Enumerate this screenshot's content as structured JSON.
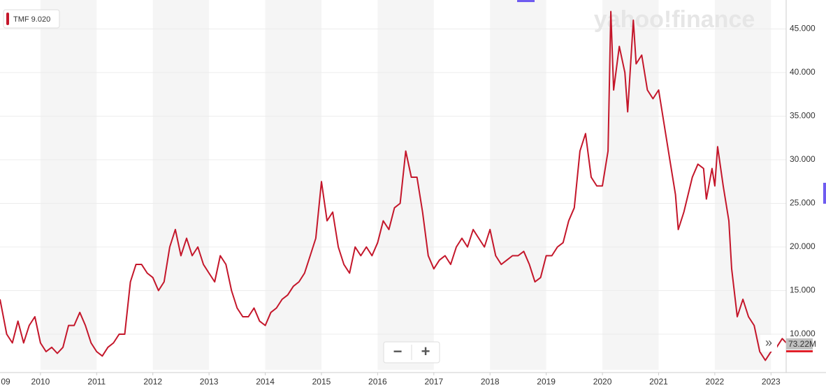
{
  "chart_data": {
    "type": "line",
    "legend_label": "TMF 9.020",
    "watermark": "yahoo!finance",
    "volume_label": "73.22M",
    "zoom_out": "−",
    "zoom_in": "+",
    "scroll": "»",
    "x": [
      2009.28,
      2009.4,
      2009.5,
      2009.6,
      2009.7,
      2009.8,
      2009.9,
      2010.0,
      2010.1,
      2010.2,
      2010.3,
      2010.4,
      2010.5,
      2010.6,
      2010.7,
      2010.8,
      2010.9,
      2011.0,
      2011.1,
      2011.2,
      2011.3,
      2011.4,
      2011.5,
      2011.6,
      2011.7,
      2011.8,
      2011.9,
      2012.0,
      2012.1,
      2012.2,
      2012.3,
      2012.4,
      2012.5,
      2012.6,
      2012.7,
      2012.8,
      2012.9,
      2013.0,
      2013.1,
      2013.2,
      2013.3,
      2013.4,
      2013.5,
      2013.6,
      2013.7,
      2013.8,
      2013.9,
      2014.0,
      2014.1,
      2014.2,
      2014.3,
      2014.4,
      2014.5,
      2014.6,
      2014.7,
      2014.8,
      2014.9,
      2015.0,
      2015.1,
      2015.2,
      2015.3,
      2015.4,
      2015.5,
      2015.6,
      2015.7,
      2015.8,
      2015.9,
      2016.0,
      2016.1,
      2016.2,
      2016.3,
      2016.4,
      2016.5,
      2016.6,
      2016.7,
      2016.8,
      2016.9,
      2017.0,
      2017.1,
      2017.2,
      2017.3,
      2017.4,
      2017.5,
      2017.6,
      2017.7,
      2017.8,
      2017.9,
      2018.0,
      2018.1,
      2018.2,
      2018.3,
      2018.4,
      2018.5,
      2018.6,
      2018.7,
      2018.8,
      2018.9,
      2019.0,
      2019.1,
      2019.2,
      2019.3,
      2019.4,
      2019.5,
      2019.6,
      2019.7,
      2019.8,
      2019.9,
      2020.0,
      2020.1,
      2020.15,
      2020.2,
      2020.3,
      2020.4,
      2020.45,
      2020.55,
      2020.6,
      2020.7,
      2020.8,
      2020.9,
      2021.0,
      2021.1,
      2021.2,
      2021.3,
      2021.35,
      2021.45,
      2021.6,
      2021.7,
      2021.8,
      2021.85,
      2021.95,
      2022.0,
      2022.05,
      2022.15,
      2022.25,
      2022.3,
      2022.4,
      2022.5,
      2022.6,
      2022.7,
      2022.8,
      2022.9,
      2023.0,
      2023.1,
      2023.2,
      2023.27
    ],
    "series": [
      {
        "name": "TMF",
        "color": "#c4162a",
        "values": [
          14,
          10,
          9,
          11.5,
          9,
          11,
          12,
          9,
          8,
          8.5,
          7.8,
          8.5,
          11,
          11,
          12.5,
          11,
          9,
          8,
          7.5,
          8.5,
          9,
          10,
          10,
          16,
          18,
          18,
          17,
          16.5,
          15,
          16,
          20,
          22,
          19,
          21,
          19,
          20,
          18,
          17,
          16,
          19,
          18,
          15,
          13,
          12,
          12,
          13,
          11.5,
          11,
          12.5,
          13,
          14,
          14.5,
          15.5,
          16,
          17,
          19,
          21,
          27.5,
          23,
          24,
          20,
          18,
          17,
          20,
          19,
          20,
          19,
          20.5,
          23,
          22,
          24.5,
          25,
          31,
          28,
          28,
          24,
          19,
          17.5,
          18.5,
          19,
          18,
          20,
          21,
          20,
          22,
          21,
          20,
          22,
          19,
          18,
          18.5,
          19,
          19,
          19.5,
          18,
          16,
          16.5,
          19,
          19,
          20,
          20.5,
          23,
          24.5,
          31,
          33,
          28,
          27,
          27,
          31,
          47,
          38,
          43,
          40,
          35.5,
          46,
          41,
          42,
          38,
          37,
          38,
          34,
          30,
          26,
          22,
          24,
          28,
          29.5,
          29,
          25.5,
          29,
          27,
          31.5,
          27,
          23,
          17.5,
          12,
          14,
          12,
          11,
          8,
          7,
          8,
          8.5,
          9.5,
          9.02
        ]
      }
    ],
    "xlim": [
      2009.28,
      2023.27
    ],
    "xticks": [
      {
        "value": 2009,
        "label": "09"
      },
      2010,
      2011,
      2012,
      2013,
      2014,
      2015,
      2016,
      2017,
      2018,
      2019,
      2020,
      2021,
      2022,
      2023
    ],
    "ylim": [
      5.92,
      48.32
    ],
    "yticks": [
      {
        "value": 10,
        "label": "10.000"
      },
      {
        "value": 15,
        "label": "15.000"
      },
      {
        "value": 20,
        "label": "20.000"
      },
      {
        "value": 25,
        "label": "25.000"
      },
      {
        "value": 30,
        "label": "30.000"
      },
      {
        "value": 35,
        "label": "35.000"
      },
      {
        "value": 40,
        "label": "40.000"
      },
      {
        "value": 45,
        "label": "45.000"
      }
    ],
    "grid": true
  }
}
